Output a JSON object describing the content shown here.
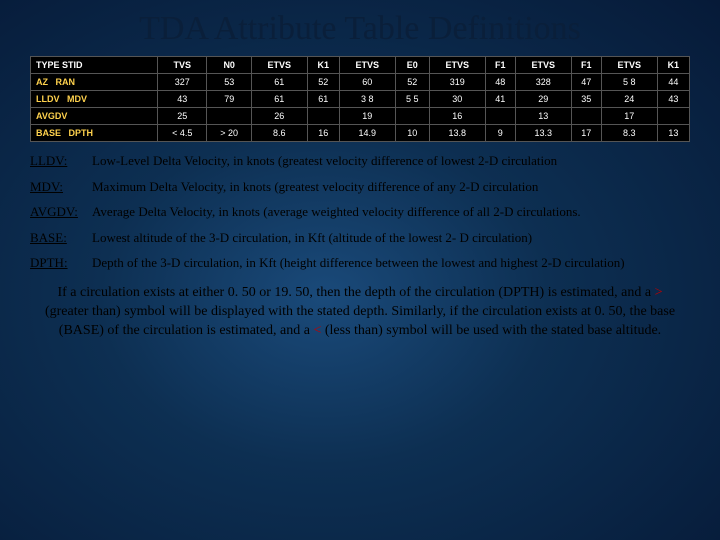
{
  "title": "TDA Attribute Table Definitions",
  "table": {
    "headers": [
      "TYPE STID",
      "TVS",
      "N0",
      "ETVS",
      "K1",
      "ETVS",
      "E0",
      "ETVS",
      "F1",
      "ETVS",
      "F1",
      "ETVS",
      "K1"
    ],
    "rows": [
      {
        "label": "AZ",
        "label2": "RAN",
        "cells": [
          "327",
          "53",
          "61",
          "52",
          "60",
          "52",
          "319",
          "48",
          "328",
          "47",
          "5 8",
          "44"
        ]
      },
      {
        "label": "LLDV",
        "label2": "MDV",
        "cells": [
          "43",
          "79",
          "61",
          "61",
          "3 8",
          "5 5",
          "30",
          "41",
          "29",
          "35",
          "24",
          "43"
        ]
      },
      {
        "label": "AVGDV",
        "label2": "",
        "cells": [
          "25",
          "",
          "26",
          "",
          "19",
          "",
          "16",
          "",
          "13",
          "",
          "17",
          ""
        ]
      },
      {
        "label": "BASE",
        "label2": "DPTH",
        "cells": [
          "< 4.5",
          "> 20",
          "8.6",
          "16",
          "14.9",
          "10",
          "13.8",
          "9",
          "13.3",
          "17",
          "8.3",
          "13"
        ]
      }
    ],
    "header_bg": "#000000",
    "cell_bg": "#000000",
    "label_color": "#ffd24d",
    "text_color": "#ffffff",
    "border_color": "#555555",
    "fontsize": 9
  },
  "definitions": [
    {
      "term": "LLDV:",
      "text": "Low-Level Delta Velocity, in knots (greatest velocity difference of lowest 2-D circulation"
    },
    {
      "term": "MDV:",
      "text": "Maximum Delta Velocity, in knots (greatest velocity difference of any 2-D circulation"
    },
    {
      "term": "AVGDV:",
      "text": "Average Delta Velocity, in knots (average weighted velocity difference of all 2-D circulations."
    },
    {
      "term": "BASE:",
      "text": "Lowest altitude of the 3-D circulation, in Kft (altitude of the lowest 2- D circulation)"
    },
    {
      "term": "DPTH:",
      "text": "Depth of the 3-D circulation, in Kft (height difference between the lowest and highest 2-D circulation)"
    }
  ],
  "footnote": {
    "pre1": "If a circulation exists at either 0. 50 or 19. 50, then the depth of the circulation (DPTH) is estimated, and a ",
    "gt": ">",
    "post_gt": " (greater than) symbol will be displayed with the stated depth. Similarly, if the circulation exists at 0. 50, the base (BASE) of the circulation is estimated, and a ",
    "lt": "<",
    "post_lt": " (less than) symbol will be used with the stated base altitude."
  },
  "colors": {
    "bg_center": "#1a4a7a",
    "bg_mid": "#0d2f52",
    "bg_outer": "#061a38",
    "title_color": "#0a1f3a",
    "def_color": "#000000",
    "red": "#c00000"
  }
}
